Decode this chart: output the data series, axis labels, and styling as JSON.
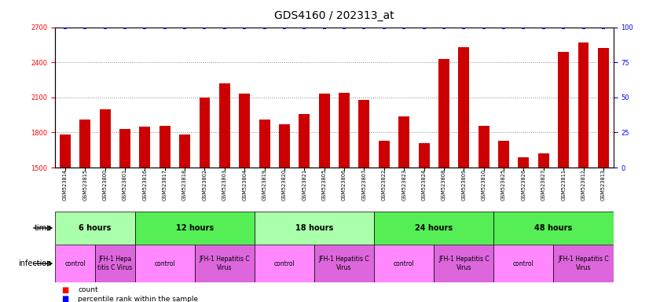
{
  "title": "GDS4160 / 202313_at",
  "samples": [
    "GSM523814",
    "GSM523815",
    "GSM523800",
    "GSM523801",
    "GSM523816",
    "GSM523817",
    "GSM523818",
    "GSM523802",
    "GSM523803",
    "GSM523804",
    "GSM523819",
    "GSM523820",
    "GSM523821",
    "GSM523805",
    "GSM523806",
    "GSM523807",
    "GSM523822",
    "GSM523823",
    "GSM523824",
    "GSM523808",
    "GSM523809",
    "GSM523810",
    "GSM523825",
    "GSM523826",
    "GSM523827",
    "GSM523811",
    "GSM523812",
    "GSM523813"
  ],
  "counts": [
    1780,
    1910,
    2000,
    1830,
    1850,
    1860,
    1780,
    2100,
    2220,
    2130,
    1910,
    1870,
    1960,
    2130,
    2140,
    2080,
    1730,
    1940,
    1710,
    2430,
    2530,
    1860,
    1730,
    1590,
    1620,
    2490,
    2570,
    2520
  ],
  "percentile_ranks": [
    100,
    100,
    100,
    100,
    100,
    100,
    100,
    100,
    100,
    100,
    100,
    100,
    100,
    100,
    100,
    100,
    100,
    100,
    100,
    100,
    100,
    100,
    100,
    100,
    100,
    100,
    100,
    100
  ],
  "ylim_left": [
    1500,
    2700
  ],
  "ylim_right": [
    0,
    100
  ],
  "yticks_left": [
    1500,
    1800,
    2100,
    2400,
    2700
  ],
  "yticks_right": [
    0,
    25,
    50,
    75,
    100
  ],
  "bar_color": "#cc0000",
  "dot_color": "#0000cc",
  "background_color": "#ffffff",
  "time_groups": [
    {
      "label": "6 hours",
      "start": 0,
      "end": 4,
      "color": "#aaffaa"
    },
    {
      "label": "12 hours",
      "start": 4,
      "end": 10,
      "color": "#55ee55"
    },
    {
      "label": "18 hours",
      "start": 10,
      "end": 16,
      "color": "#aaffaa"
    },
    {
      "label": "24 hours",
      "start": 16,
      "end": 22,
      "color": "#55ee55"
    },
    {
      "label": "48 hours",
      "start": 22,
      "end": 28,
      "color": "#55ee55"
    }
  ],
  "infection_groups": [
    {
      "label": "control",
      "start": 0,
      "end": 2,
      "color": "#ff88ff"
    },
    {
      "label": "JFH-1 Hepa\ntitis C Virus",
      "start": 2,
      "end": 4,
      "color": "#dd66dd"
    },
    {
      "label": "control",
      "start": 4,
      "end": 7,
      "color": "#ff88ff"
    },
    {
      "label": "JFH-1 Hepatitis C\nVirus",
      "start": 7,
      "end": 10,
      "color": "#dd66dd"
    },
    {
      "label": "control",
      "start": 10,
      "end": 13,
      "color": "#ff88ff"
    },
    {
      "label": "JFH-1 Hepatitis C\nVirus",
      "start": 13,
      "end": 16,
      "color": "#dd66dd"
    },
    {
      "label": "control",
      "start": 16,
      "end": 19,
      "color": "#ff88ff"
    },
    {
      "label": "JFH-1 Hepatitis C\nVirus",
      "start": 19,
      "end": 22,
      "color": "#dd66dd"
    },
    {
      "label": "control",
      "start": 22,
      "end": 25,
      "color": "#ff88ff"
    },
    {
      "label": "JFH-1 Hepatitis C\nVirus",
      "start": 25,
      "end": 28,
      "color": "#dd66dd"
    }
  ],
  "grid_color": "#888888",
  "title_fontsize": 10,
  "tick_fontsize": 6,
  "annot_fontsize": 7,
  "bar_width": 0.55
}
